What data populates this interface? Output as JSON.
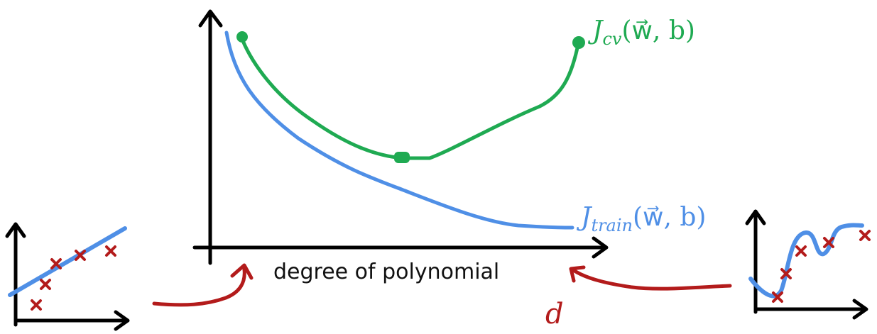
{
  "main_plot": {
    "x_axis_label": "degree of polynomial",
    "cv_curve_label": {
      "name": "J",
      "subscript": "cv",
      "args": "(w⃗, b)"
    },
    "train_curve_label": {
      "name": "J",
      "subscript": "train",
      "args": "(w⃗, b)"
    },
    "parameter_label": "d"
  },
  "colors": {
    "axis": "#000000",
    "cv_curve": "#1faa52",
    "train_curve": "#4f8fe6",
    "annotation_red": "#b31b1b",
    "text": "#111111"
  },
  "icons": {
    "left_inset": "linear-fit-thumbnail",
    "right_inset": "high-degree-fit-thumbnail",
    "arrows": "hand-drawn-red-arrow"
  }
}
